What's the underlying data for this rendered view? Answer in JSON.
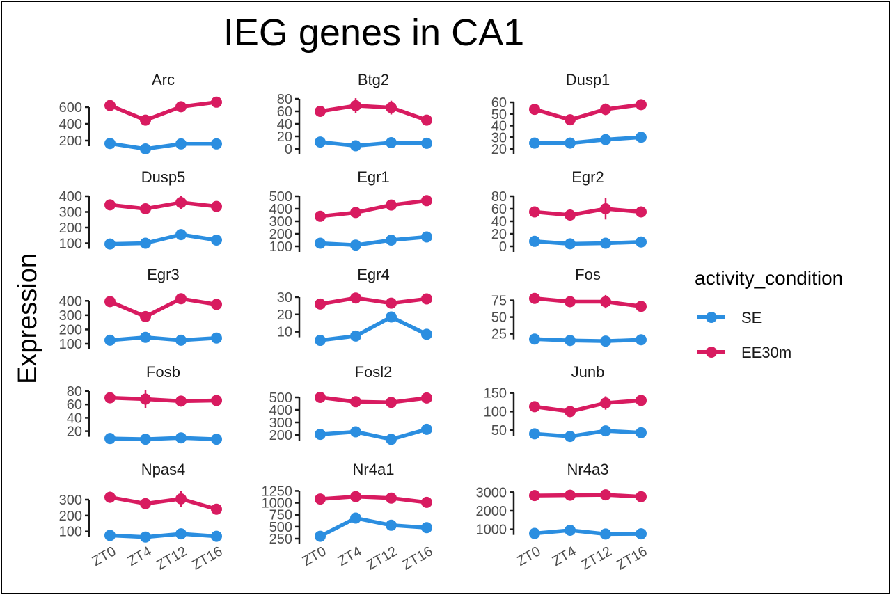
{
  "chart_data": {
    "type": "line",
    "title": "IEG genes in CA1",
    "xlabel": "",
    "ylabel": "Expression",
    "categories": [
      "ZT0",
      "ZT4",
      "ZT12",
      "ZT16"
    ],
    "legend": {
      "title": "activity_condition",
      "position": "right",
      "entries": [
        {
          "name": "SE",
          "color": "#2b8ee0"
        },
        {
          "name": "EE30m",
          "color": "#d81b60"
        }
      ]
    },
    "grid": false,
    "facets": [
      {
        "gene": "Arc",
        "ylim": [
          100,
          700
        ],
        "ticks": [
          200,
          400,
          600
        ],
        "series": [
          {
            "name": "SE",
            "values": [
              165,
              100,
              160,
              160
            ],
            "err": [
              60,
              0,
              0,
              0
            ]
          },
          {
            "name": "EE30m",
            "values": [
              620,
              445,
              605,
              660
            ],
            "err": [
              0,
              0,
              0,
              30
            ]
          }
        ]
      },
      {
        "gene": "Btg2",
        "ylim": [
          0,
          80
        ],
        "ticks": [
          0,
          20,
          40,
          60,
          80
        ],
        "series": [
          {
            "name": "SE",
            "values": [
              11,
              5,
              10,
              9
            ],
            "err": [
              0,
              0,
              0,
              0
            ]
          },
          {
            "name": "EE30m",
            "values": [
              60,
              69,
              66,
              46
            ],
            "err": [
              7,
              12,
              11,
              0
            ]
          }
        ]
      },
      {
        "gene": "Dusp1",
        "ylim": [
          20,
          63
        ],
        "ticks": [
          20,
          30,
          40,
          50,
          60
        ],
        "series": [
          {
            "name": "SE",
            "values": [
              25,
              25,
              28,
              30
            ],
            "err": [
              0,
              0,
              3.5,
              0
            ]
          },
          {
            "name": "EE30m",
            "values": [
              54,
              45,
              54,
              58
            ],
            "err": [
              0,
              2,
              5,
              3.5
            ]
          }
        ]
      },
      {
        "gene": "Dusp5",
        "ylim": [
          80,
          400
        ],
        "ticks": [
          100,
          200,
          300,
          400
        ],
        "series": [
          {
            "name": "SE",
            "values": [
              95,
              100,
              155,
              120
            ],
            "err": [
              0,
              0,
              0,
              0
            ]
          },
          {
            "name": "EE30m",
            "values": [
              345,
              320,
              360,
              335
            ],
            "err": [
              0,
              0,
              40,
              0
            ]
          }
        ]
      },
      {
        "gene": "Egr1",
        "ylim": [
          100,
          500
        ],
        "ticks": [
          100,
          200,
          300,
          400,
          500
        ],
        "series": [
          {
            "name": "SE",
            "values": [
              125,
              110,
              150,
              175
            ],
            "err": [
              0,
              0,
              0,
              0
            ]
          },
          {
            "name": "EE30m",
            "values": [
              340,
              370,
              430,
              465
            ],
            "err": [
              0,
              0,
              40,
              40
            ]
          }
        ]
      },
      {
        "gene": "Egr2",
        "ylim": [
          0,
          80
        ],
        "ticks": [
          0,
          20,
          40,
          60,
          80
        ],
        "series": [
          {
            "name": "SE",
            "values": [
              8,
              4,
              5,
              7
            ],
            "err": [
              0,
              0,
              0,
              0
            ]
          },
          {
            "name": "EE30m",
            "values": [
              55,
              50,
              60,
              55
            ],
            "err": [
              0,
              0,
              17,
              0
            ]
          }
        ]
      },
      {
        "gene": "Egr3",
        "ylim": [
          100,
          450
        ],
        "ticks": [
          100,
          200,
          300,
          400
        ],
        "series": [
          {
            "name": "SE",
            "values": [
              125,
              145,
              125,
              140
            ],
            "err": [
              0,
              0,
              0,
              0
            ]
          },
          {
            "name": "EE30m",
            "values": [
              395,
              290,
              415,
              375
            ],
            "err": [
              30,
              0,
              0,
              0
            ]
          }
        ]
      },
      {
        "gene": "Egr4",
        "ylim": [
          3,
          32
        ],
        "ticks": [
          10,
          20,
          30
        ],
        "series": [
          {
            "name": "SE",
            "values": [
              5,
              7.5,
              18.5,
              8.5
            ],
            "err": [
              0,
              0,
              3,
              0
            ]
          },
          {
            "name": "EE30m",
            "values": [
              26,
              29.5,
              26.5,
              29
            ],
            "err": [
              0,
              2.5,
              2,
              0
            ]
          }
        ]
      },
      {
        "gene": "Fos",
        "ylim": [
          10,
          85
        ],
        "ticks": [
          25,
          50,
          75
        ],
        "series": [
          {
            "name": "SE",
            "values": [
              17,
              15,
              14,
              16
            ],
            "err": [
              0,
              0,
              0,
              0
            ]
          },
          {
            "name": "EE30m",
            "values": [
              78,
              73,
              73,
              66
            ],
            "err": [
              0,
              0,
              10,
              0
            ]
          }
        ]
      },
      {
        "gene": "Fosb",
        "ylim": [
          5,
          80
        ],
        "ticks": [
          20,
          40,
          60,
          80
        ],
        "series": [
          {
            "name": "SE",
            "values": [
              9,
              8,
              10,
              8
            ],
            "err": [
              0,
              0,
              0,
              0
            ]
          },
          {
            "name": "EE30m",
            "values": [
              70,
              68,
              65,
              66
            ],
            "err": [
              0,
              14,
              7,
              0
            ]
          }
        ]
      },
      {
        "gene": "Fosl2",
        "ylim": [
          150,
          550
        ],
        "ticks": [
          200,
          300,
          400,
          500
        ],
        "series": [
          {
            "name": "SE",
            "values": [
              205,
              225,
              165,
              245
            ],
            "err": [
              0,
              0,
              0,
              25
            ]
          },
          {
            "name": "EE30m",
            "values": [
              500,
              465,
              460,
              495
            ],
            "err": [
              0,
              0,
              0,
              0
            ]
          }
        ]
      },
      {
        "gene": "Junb",
        "ylim": [
          20,
          155
        ],
        "ticks": [
          50,
          100,
          150
        ],
        "series": [
          {
            "name": "SE",
            "values": [
              40,
              33,
              48,
              43
            ],
            "err": [
              0,
              0,
              0,
              0
            ]
          },
          {
            "name": "EE30m",
            "values": [
              113,
              100,
              123,
              130
            ],
            "err": [
              0,
              0,
              18,
              0
            ]
          }
        ]
      },
      {
        "gene": "Npas4",
        "ylim": [
          55,
          370
        ],
        "ticks": [
          100,
          200,
          300
        ],
        "series": [
          {
            "name": "SE",
            "values": [
              75,
              65,
              85,
              70
            ],
            "err": [
              0,
              0,
              0,
              0
            ]
          },
          {
            "name": "EE30m",
            "values": [
              315,
              275,
              305,
              240
            ],
            "err": [
              35,
              0,
              50,
              0
            ]
          }
        ]
      },
      {
        "gene": "Nr4a1",
        "ylim": [
          250,
          1300
        ],
        "ticks": [
          250,
          500,
          750,
          1000,
          1250
        ],
        "series": [
          {
            "name": "SE",
            "values": [
              300,
              680,
              530,
              480
            ],
            "err": [
              0,
              0,
              0,
              0
            ]
          },
          {
            "name": "EE30m",
            "values": [
              1080,
              1130,
              1100,
              1010
            ],
            "err": [
              0,
              0,
              90,
              0
            ]
          }
        ]
      },
      {
        "gene": "Nr4a3",
        "ylim": [
          500,
          3200
        ],
        "ticks": [
          1000,
          2000,
          3000
        ],
        "series": [
          {
            "name": "SE",
            "values": [
              780,
              950,
              750,
              760
            ],
            "err": [
              0,
              0,
              0,
              0
            ]
          },
          {
            "name": "EE30m",
            "values": [
              2820,
              2840,
              2860,
              2760
            ],
            "err": [
              0,
              250,
              0,
              0
            ]
          }
        ]
      }
    ]
  }
}
